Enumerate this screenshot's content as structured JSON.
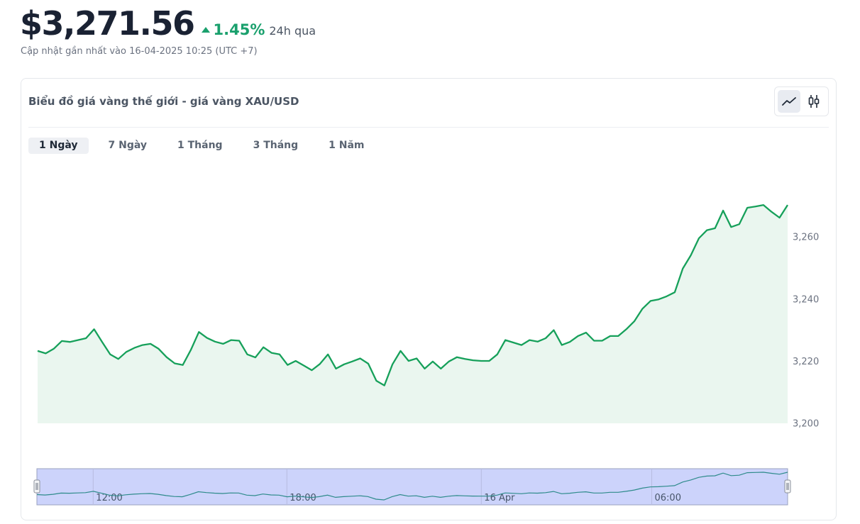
{
  "header": {
    "price": "$3,271.56",
    "change_pct": "1.45%",
    "change_period": "24h qua",
    "updated": "Cập nhật gần nhất vào 16-04-2025 10:25 (UTC +7)",
    "up_color": "#1aa06d"
  },
  "card": {
    "title": "Biểu đồ giá vàng thế giới - giá vàng XAU/USD",
    "type_buttons": [
      {
        "name": "line-chart-icon",
        "active": true
      },
      {
        "name": "candlestick-icon",
        "active": false
      }
    ],
    "tabs": [
      {
        "label": "1 Ngày",
        "active": true
      },
      {
        "label": "7 Ngày",
        "active": false
      },
      {
        "label": "1 Tháng",
        "active": false
      },
      {
        "label": "3 Tháng",
        "active": false
      },
      {
        "label": "1 Năm",
        "active": false
      }
    ]
  },
  "chart_data": {
    "type": "area",
    "title": "",
    "ylabel": "",
    "xlabel": "",
    "ylim": [
      3200,
      3272
    ],
    "yticks": [
      3200,
      3220,
      3240,
      3260
    ],
    "ytick_labels": [
      "3,200",
      "3,220",
      "3,240",
      "3,260"
    ],
    "line_color": "#16a05a",
    "fill_color": "#eaf6ef",
    "series": [
      {
        "values": [
          3223.3,
          3222.5,
          3224.0,
          3226.5,
          3226.2,
          3226.8,
          3227.4,
          3230.3,
          3226.2,
          3222.2,
          3220.7,
          3223.0,
          3224.3,
          3225.2,
          3225.6,
          3224.0,
          3221.3,
          3219.3,
          3218.8,
          3223.6,
          3229.4,
          3227.5,
          3226.3,
          3225.6,
          3226.8,
          3226.6,
          3222.2,
          3221.2,
          3224.5,
          3222.7,
          3222.2,
          3218.8,
          3220.1,
          3218.6,
          3217.1,
          3219.1,
          3222.2,
          3217.6,
          3219.0,
          3219.9,
          3220.9,
          3219.2,
          3213.7,
          3212.2,
          3219.0,
          3223.3,
          3220.1,
          3220.9,
          3217.6,
          3219.9,
          3217.6,
          3219.9,
          3221.3,
          3220.7,
          3220.3,
          3220.1,
          3220.1,
          3222.2,
          3226.8,
          3226.0,
          3225.2,
          3226.8,
          3226.3,
          3227.4,
          3230.0,
          3225.2,
          3226.2,
          3228.1,
          3229.2,
          3226.6,
          3226.6,
          3228.1,
          3228.1,
          3230.3,
          3232.9,
          3236.9,
          3239.4,
          3239.9,
          3240.9,
          3242.2,
          3249.8,
          3254.1,
          3259.6,
          3262.2,
          3262.8,
          3268.5,
          3263.2,
          3264.1,
          3269.4,
          3269.8,
          3270.3,
          3268.1,
          3266.2,
          3270.3
        ]
      }
    ],
    "navigator_labels": [
      "12:00",
      "18:00",
      "16 Apr",
      "06:00"
    ],
    "navigator_label_fractions": [
      0.075,
      0.333,
      0.592,
      0.819
    ]
  }
}
